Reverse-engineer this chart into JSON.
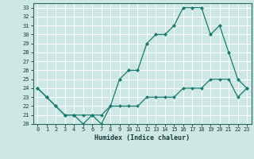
{
  "xlabel": "Humidex (Indice chaleur)",
  "bg_color": "#cde8e4",
  "grid_color": "#ffffff",
  "line_color": "#1a7a6e",
  "xlim": [
    -0.5,
    23.5
  ],
  "ylim": [
    20,
    33.5
  ],
  "xticks": [
    0,
    1,
    2,
    3,
    4,
    5,
    6,
    7,
    8,
    9,
    10,
    11,
    12,
    13,
    14,
    15,
    16,
    17,
    18,
    19,
    20,
    21,
    22,
    23
  ],
  "yticks": [
    20,
    21,
    22,
    23,
    24,
    25,
    26,
    27,
    28,
    29,
    30,
    31,
    32,
    33
  ],
  "line1_x": [
    0,
    1,
    2,
    3,
    4,
    5,
    6,
    7,
    8,
    9,
    10,
    11,
    12,
    13,
    14,
    15,
    16,
    17,
    18,
    19,
    20,
    21,
    22,
    23
  ],
  "line1_y": [
    24,
    23,
    22,
    21,
    21,
    20,
    21,
    20,
    22,
    25,
    26,
    26,
    29,
    30,
    30,
    31,
    33,
    33,
    33,
    30,
    31,
    28,
    25,
    24
  ],
  "line2_x": [
    0,
    1,
    2,
    3,
    4,
    5,
    6,
    7,
    8,
    9,
    10,
    11,
    12,
    13,
    14,
    15,
    16,
    17,
    18,
    19,
    20,
    21,
    22,
    23
  ],
  "line2_y": [
    24,
    23,
    22,
    21,
    21,
    21,
    21,
    21,
    22,
    22,
    22,
    22,
    23,
    23,
    23,
    23,
    24,
    24,
    24,
    25,
    25,
    25,
    23,
    24
  ],
  "xlabel_fontsize": 6,
  "tick_fontsize": 5
}
